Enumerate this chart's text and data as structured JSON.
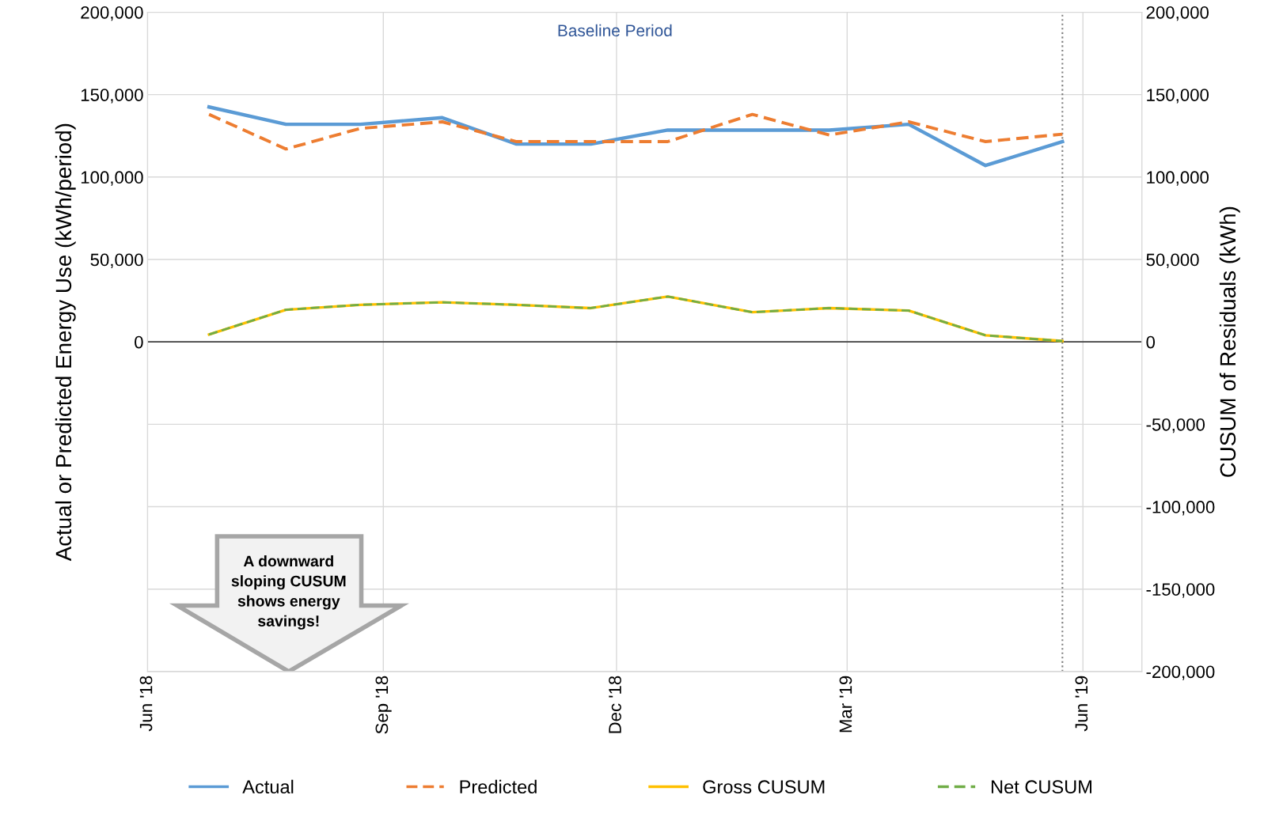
{
  "chart_data": {
    "type": "line",
    "ylabel": "Actual or Predicted Energy Use (kWh/period)",
    "y2label": "CUSUM of Residuals (kWh)",
    "x": [
      "2018-06-25",
      "2018-07-25",
      "2018-08-23",
      "2018-09-24",
      "2018-10-23",
      "2018-11-21",
      "2018-12-21",
      "2019-01-23",
      "2019-02-22",
      "2019-03-25",
      "2019-04-24",
      "2019-05-24"
    ],
    "series": [
      {
        "name": "Actual",
        "color": "#5b9bd5",
        "line_style": "solid",
        "values": [
          142500,
          132000,
          132000,
          136000,
          120000,
          120000,
          128500,
          128500,
          128500,
          132000,
          107000,
          121500
        ]
      },
      {
        "name": "Predicted",
        "color": "#ed7d31",
        "line_style": "dashed",
        "values": [
          138000,
          117000,
          129500,
          133500,
          121500,
          121500,
          121500,
          138000,
          125500,
          133500,
          121500,
          126000
        ]
      },
      {
        "name": "Gross CUSUM",
        "color": "#ffc000",
        "line_style": "solid",
        "values": [
          4500,
          19500,
          22500,
          24000,
          22500,
          20500,
          27500,
          18000,
          20500,
          19000,
          4000,
          500
        ]
      },
      {
        "name": "Net CUSUM",
        "color": "#70ad47",
        "line_style": "dashed",
        "values": [
          4500,
          19500,
          22500,
          24000,
          22500,
          20500,
          27500,
          18000,
          20500,
          19000,
          4000,
          500
        ]
      }
    ],
    "xlim": [
      "2018-06-01",
      "2019-06-24"
    ],
    "xticks": [
      {
        "value": "2018-06-01",
        "label": "Jun '18"
      },
      {
        "value": "2018-09-01",
        "label": "Sep '18"
      },
      {
        "value": "2018-12-01",
        "label": "Dec '18"
      },
      {
        "value": "2019-03-01",
        "label": "Mar '19"
      },
      {
        "value": "2019-06-01",
        "label": "Jun '19"
      }
    ],
    "ylim": [
      -200000,
      200000
    ],
    "yticks": [
      {
        "value": -200000,
        "label": null
      },
      {
        "value": -150000,
        "label": null
      },
      {
        "value": -100000,
        "label": null
      },
      {
        "value": -50000,
        "label": null
      },
      {
        "value": 0,
        "label": "0"
      },
      {
        "value": 50000,
        "label": "50,000"
      },
      {
        "value": 100000,
        "label": "100,000"
      },
      {
        "value": 150000,
        "label": "150,000"
      },
      {
        "value": 200000,
        "label": "200,000"
      }
    ],
    "y2lim": [
      -200000,
      200000
    ],
    "y2ticks": [
      {
        "value": -200000,
        "label": "-200,000"
      },
      {
        "value": -150000,
        "label": "-150,000"
      },
      {
        "value": -100000,
        "label": "-100,000"
      },
      {
        "value": -50000,
        "label": "-50,000"
      },
      {
        "value": 0,
        "label": "0"
      },
      {
        "value": 50000,
        "label": "50,000"
      },
      {
        "value": 100000,
        "label": "100,000"
      },
      {
        "value": 150000,
        "label": "150,000"
      },
      {
        "value": 200000,
        "label": "200,000"
      }
    ],
    "ref_lines": [
      {
        "axis": "x",
        "value": "2019-05-24",
        "color": "#7f7f7f",
        "line_style": "dotted"
      }
    ],
    "annotations": [
      "Baseline Period",
      "A downward sloping CUSUM shows energy savings!"
    ],
    "grid": true,
    "legend": "bottom",
    "marker": "none"
  }
}
